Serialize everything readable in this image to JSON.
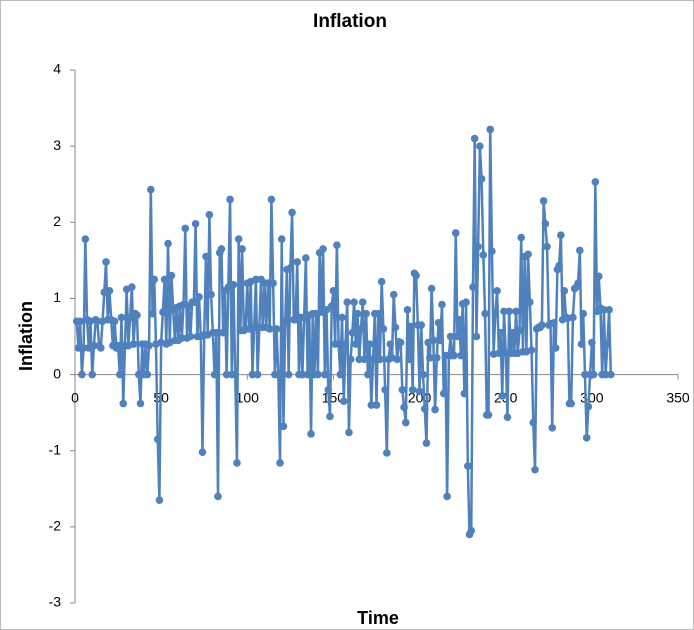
{
  "chart_data": {
    "type": "line",
    "title": "Inflation",
    "xlabel": "Time",
    "ylabel": "Inflation",
    "xlim": [
      0,
      350
    ],
    "xticks": [
      0,
      50,
      100,
      150,
      200,
      250,
      300,
      350
    ],
    "ylim": [
      -3,
      4
    ],
    "yticks": [
      -3,
      -2,
      -1,
      0,
      1,
      2,
      3,
      4
    ],
    "color": "#4f81bd",
    "x": [
      1,
      2,
      3,
      4,
      5,
      6,
      7,
      8,
      9,
      10,
      11,
      12,
      13,
      14,
      15,
      16,
      17,
      18,
      19,
      20,
      21,
      22,
      23,
      24,
      25,
      26,
      27,
      28,
      29,
      30,
      31,
      32,
      33,
      34,
      35,
      36,
      37,
      38,
      39,
      40,
      41,
      42,
      43,
      44,
      45,
      46,
      47,
      48,
      49,
      50,
      51,
      52,
      53,
      54,
      55,
      56,
      57,
      58,
      59,
      60,
      61,
      62,
      63,
      64,
      65,
      66,
      67,
      68,
      69,
      70,
      71,
      72,
      73,
      74,
      75,
      76,
      77,
      78,
      79,
      80,
      81,
      82,
      83,
      84,
      85,
      86,
      87,
      88,
      89,
      90,
      91,
      92,
      93,
      94,
      95,
      96,
      97,
      98,
      99,
      100,
      101,
      102,
      103,
      104,
      105,
      106,
      107,
      108,
      109,
      110,
      111,
      112,
      113,
      114,
      115,
      116,
      117,
      118,
      119,
      120,
      121,
      122,
      123,
      124,
      125,
      126,
      127,
      128,
      129,
      130,
      131,
      132,
      133,
      134,
      135,
      136,
      137,
      138,
      139,
      140,
      141,
      142,
      143,
      144,
      145,
      146,
      147,
      148,
      149,
      150,
      151,
      152,
      153,
      154,
      155,
      156,
      157,
      158,
      159,
      160,
      161,
      162,
      163,
      164,
      165,
      166,
      167,
      168,
      169,
      170,
      171,
      172,
      173,
      174,
      175,
      176,
      177,
      178,
      179,
      180,
      181,
      182,
      183,
      184,
      185,
      186,
      187,
      188,
      189,
      190,
      191,
      192,
      193,
      194,
      195,
      196,
      197,
      198,
      199,
      200,
      201,
      202,
      203,
      204,
      205,
      206,
      207,
      208,
      209,
      210,
      211,
      212,
      213,
      214,
      215,
      216,
      217,
      218,
      219,
      220,
      221,
      222,
      223,
      224,
      225,
      226,
      227,
      228,
      229,
      230,
      231,
      232,
      233,
      234,
      235,
      236,
      237,
      238,
      239,
      240,
      241,
      242,
      243,
      244,
      245,
      246,
      247,
      248,
      249,
      250,
      251,
      252,
      253,
      254,
      255,
      256,
      257,
      258,
      259,
      260,
      261,
      262,
      263,
      264,
      265,
      266,
      267,
      268,
      269,
      270,
      271,
      272,
      273,
      274,
      275,
      276,
      277,
      278,
      279,
      280,
      281,
      282,
      283,
      284,
      285,
      286,
      287,
      288,
      289,
      290,
      291,
      292,
      293,
      294,
      295,
      296,
      297,
      298,
      299,
      300,
      301,
      302,
      303,
      304,
      305,
      306,
      307,
      308,
      309,
      310,
      311
    ],
    "values": [
      0.7,
      0.35,
      0.7,
      0,
      0.35,
      1.78,
      0.72,
      0.35,
      0.7,
      0,
      0.38,
      0.72,
      0.7,
      0.38,
      0.35,
      0.7,
      1.08,
      1.48,
      0.72,
      1.1,
      0.72,
      0.38,
      0.7,
      0.35,
      0.38,
      0,
      0.75,
      -0.38,
      0.38,
      1.12,
      0.38,
      0.75,
      1.15,
      0.4,
      0.8,
      0.78,
      0,
      -0.38,
      0.4,
      0,
      0.4,
      0,
      0.38,
      2.43,
      0.8,
      1.25,
      0.4,
      -0.85,
      -1.65,
      0.42,
      0.82,
      1.25,
      0.4,
      1.72,
      0.42,
      1.3,
      0.85,
      0.45,
      0.88,
      0.45,
      0.9,
      0.48,
      0.92,
      1.92,
      0.48,
      0.9,
      0.5,
      0.95,
      0.95,
      1.98,
      0.5,
      1.02,
      0.5,
      -1.02,
      0.52,
      1.55,
      0.52,
      2.1,
      1.05,
      0.55,
      0,
      0.55,
      -1.6,
      1.6,
      1.65,
      0.55,
      1.1,
      0,
      1.15,
      2.3,
      0,
      1.18,
      0,
      -1.16,
      1.78,
      0.58,
      1.65,
      0.58,
      0.6,
      1.2,
      0.6,
      1.22,
      0,
      0.62,
      1.25,
      0,
      0.62,
      1.25,
      0.62,
      1.2,
      0.62,
      1.2,
      0.6,
      2.3,
      1.2,
      0,
      0.6,
      0,
      -1.16,
      1.78,
      -0.68,
      0.7,
      1.38,
      0,
      1.4,
      2.13,
      0.72,
      0.72,
      1.48,
      0,
      0.75,
      0,
      0.75,
      1.53,
      0,
      0.78,
      -0.78,
      0.8,
      0,
      0.8,
      0,
      1.6,
      0.82,
      1.65,
      0,
      0.85,
      -0.2,
      -0.55,
      0.9,
      1.1,
      0.4,
      1.7,
      0.4,
      0,
      0.75,
      -0.35,
      0.4,
      0.95,
      -0.76,
      0.2,
      0.55,
      0.95,
      0.4,
      0.8,
      0.2,
      0.6,
      0.95,
      0.2,
      0.8,
      0,
      0.4,
      -0.4,
      0.2,
      0.8,
      -0.4,
      0.8,
      0.2,
      1.22,
      0.6,
      -0.2,
      -1.03,
      0.2,
      0.4,
      0.22,
      1.05,
      0.62,
      0.2,
      0.43,
      0.42,
      -0.2,
      -0.43,
      -0.63,
      0.85,
      0.2,
      0.63,
      -0.2,
      1.33,
      1.3,
      0.65,
      -0.22,
      0.65,
      0,
      -0.45,
      -0.9,
      0.42,
      0.22,
      1.13,
      0.45,
      -0.46,
      0.22,
      0.68,
      0.45,
      0.92,
      -0.25,
      0.25,
      -1.6,
      0.25,
      0.5,
      0.25,
      0.25,
      1.86,
      0.5,
      0.72,
      0.25,
      0.93,
      -0.25,
      0.95,
      -1.2,
      -2.1,
      -2.05,
      1.15,
      3.1,
      0.5,
      1.68,
      3,
      2.57,
      1.57,
      0.8,
      -0.53,
      -0.53,
      3.22,
      1.62,
      0.27,
      0.82,
      1.1,
      0.28,
      0.55,
      -0.28,
      0.83,
      0.28,
      -0.56,
      0.83,
      0.28,
      0.55,
      0.28,
      0.83,
      0.28,
      0.58,
      1.8,
      0.3,
      1.55,
      0.3,
      1.58,
      0.95,
      0.32,
      -0.63,
      -1.25,
      0.6,
      0.62,
      0.62,
      0.65,
      2.28,
      1.98,
      1.68,
      0.65,
      0.67,
      -0.7,
      0.68,
      0.35,
      1.38,
      1.43,
      1.83,
      0.72,
      1.1,
      0.75,
      0.74,
      -0.38,
      -0.38,
      0.75,
      1.13,
      1.15,
      1.2,
      1.63,
      0.4,
      0.8,
      0,
      -0.83,
      -0.42,
      0,
      0.42,
      0,
      2.53,
      0.83,
      1.29,
      0.87,
      0,
      0.85,
      0,
      0.4,
      0.85,
      0
    ]
  }
}
